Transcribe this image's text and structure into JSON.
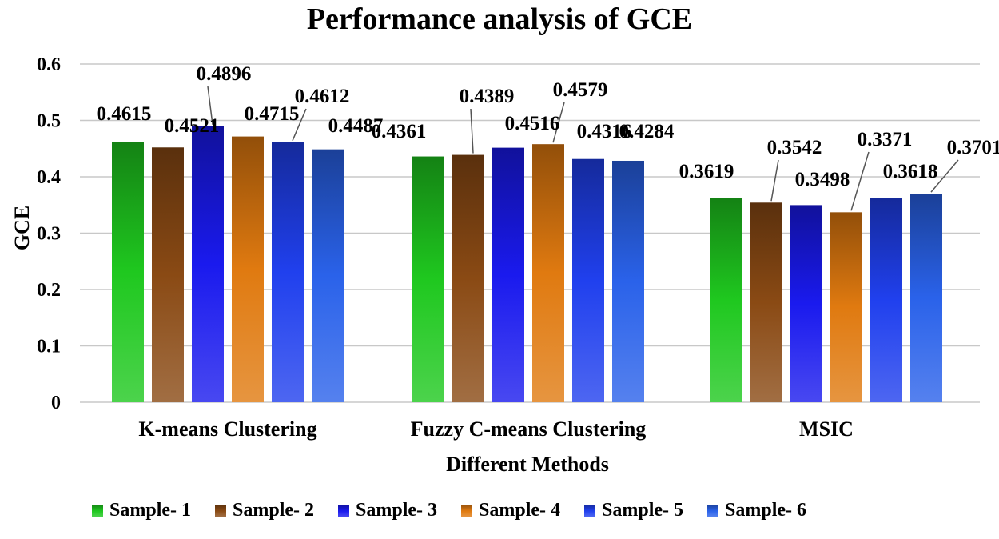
{
  "chart_data": {
    "type": "bar",
    "title": "Performance analysis of GCE",
    "xlabel": "Different Methods",
    "ylabel": "GCE",
    "ylim": [
      0,
      0.6
    ],
    "yticks": [
      "0",
      "0.1",
      "0.2",
      "0.3",
      "0.4",
      "0.5",
      "0.6"
    ],
    "grid": true,
    "legend_position": "bottom",
    "categories": [
      "K-means Clustering",
      "Fuzzy C-means Clustering",
      "MSIC"
    ],
    "series": [
      {
        "name": "Sample- 1",
        "values": [
          0.4615,
          0.4361,
          0.3619
        ],
        "labels": [
          "0.4615",
          "0.4361",
          "0.3619"
        ],
        "color": "#1fc81f"
      },
      {
        "name": "Sample- 2",
        "values": [
          0.4521,
          0.4389,
          0.3542
        ],
        "labels": [
          "0.4521",
          "0.4389",
          "0.3542"
        ],
        "color": "#8a4a14"
      },
      {
        "name": "Sample- 3",
        "values": [
          0.4896,
          0.4516,
          0.3498
        ],
        "labels": [
          "0.4896",
          "0.4516",
          "0.3498"
        ],
        "color": "#1a1aee"
      },
      {
        "name": "Sample- 4",
        "values": [
          0.4715,
          0.4579,
          0.3371
        ],
        "labels": [
          "0.4715",
          "0.4579",
          "0.3371"
        ],
        "color": "#e07a10"
      },
      {
        "name": "Sample- 5",
        "values": [
          0.4612,
          0.4316,
          0.3618
        ],
        "labels": [
          "0.4612",
          "0.4316",
          "0.3618"
        ],
        "color": "#2040ee"
      },
      {
        "name": "Sample- 6",
        "values": [
          0.4487,
          0.4284,
          0.3701
        ],
        "labels": [
          "0.4487",
          "0.4284",
          "0.3701"
        ],
        "color": "#2a62ea"
      }
    ]
  }
}
